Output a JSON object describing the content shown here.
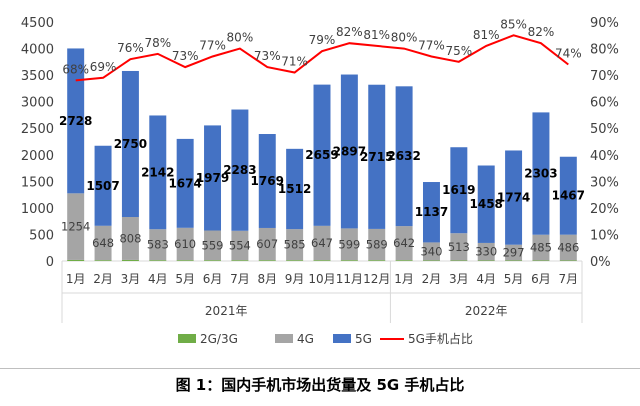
{
  "caption": "图 1：国内手机市场出货量及 5G 手机占比",
  "chart_data": {
    "type": "bar",
    "stacked": true,
    "categories": [
      "1月",
      "2月",
      "3月",
      "4月",
      "5月",
      "6月",
      "7月",
      "8月",
      "9月",
      "10月",
      "11月",
      "12月",
      "1月",
      "2月",
      "3月",
      "4月",
      "5月",
      "6月",
      "7月"
    ],
    "year_groups": [
      {
        "label": "2021年",
        "start": 0,
        "end": 11
      },
      {
        "label": "2022年",
        "start": 12,
        "end": 18
      }
    ],
    "series": [
      {
        "name": "2G/3G",
        "color": "#70ad47",
        "values": [
          20,
          15,
          20,
          15,
          15,
          15,
          15,
          15,
          15,
          15,
          15,
          15,
          15,
          10,
          10,
          10,
          10,
          10,
          10
        ]
      },
      {
        "name": "4G",
        "color": "#a5a5a5",
        "values": [
          1254,
          648,
          808,
          583,
          610,
          559,
          554,
          607,
          585,
          647,
          599,
          589,
          642,
          340,
          513,
          330,
          297,
          485,
          486
        ]
      },
      {
        "name": "5G",
        "color": "#4472c4",
        "values": [
          2728,
          1507,
          2750,
          2142,
          1674,
          1979,
          2283,
          1769,
          1512,
          2659,
          2897,
          2715,
          2632,
          1137,
          1619,
          1458,
          1774,
          2303,
          1467
        ]
      }
    ],
    "line_series": {
      "name": "5G手机占比",
      "color": "#ff0000",
      "values": [
        68,
        69,
        76,
        78,
        73,
        77,
        80,
        73,
        71,
        79,
        82,
        81,
        80,
        77,
        75,
        81,
        85,
        82,
        74
      ],
      "labels": [
        "68%",
        "69%",
        "76%",
        "78%",
        "73%",
        "77%",
        "80%",
        "73%",
        "71%",
        "79%",
        "82%",
        "81%",
        "80%",
        "77%",
        "75%",
        "81%",
        "85%",
        "82%",
        "74%"
      ]
    },
    "y_axis": {
      "min": 0,
      "max": 4500,
      "step": 500,
      "ticks": [
        "0",
        "500",
        "1000",
        "1500",
        "2000",
        "2500",
        "3000",
        "3500",
        "4000",
        "4500"
      ]
    },
    "y2_axis": {
      "min": 0,
      "max": 90,
      "step": 10,
      "ticks": [
        "0%",
        "10%",
        "20%",
        "30%",
        "40%",
        "50%",
        "60%",
        "70%",
        "80%",
        "90%"
      ]
    },
    "legend": [
      "2G/3G",
      "4G",
      "5G",
      "5G手机占比"
    ],
    "legend_position": "bottom",
    "grid": false
  }
}
